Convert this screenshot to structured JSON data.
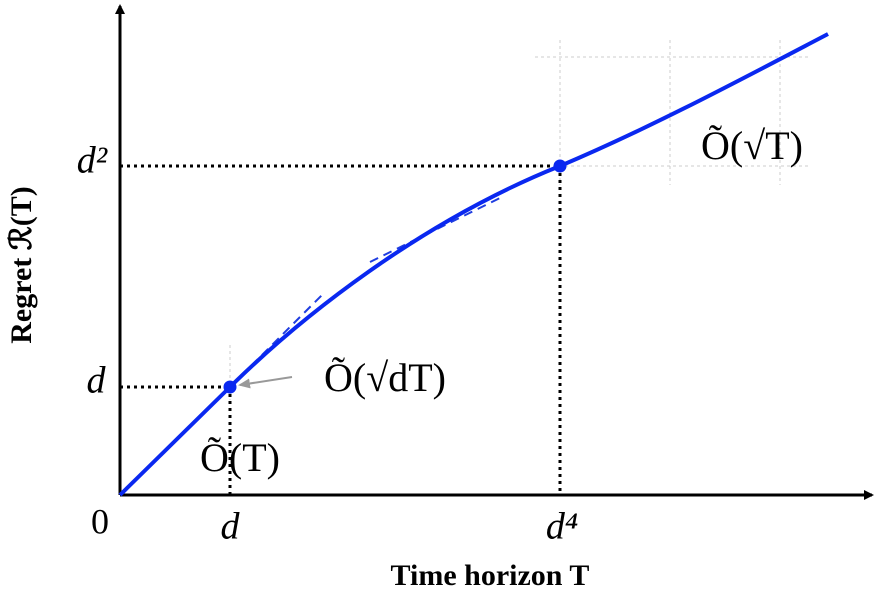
{
  "axes": {
    "x_label": "Time horizon T",
    "y_label": "Regret ℛ(T)",
    "origin": "0",
    "x_ticks": [
      "d",
      "d⁴"
    ],
    "y_ticks": [
      "d",
      "d²"
    ]
  },
  "annotations": {
    "linear": "Õ(T)",
    "middle": "Õ(√dT)",
    "sqrt": "Õ(√T)"
  }
}
